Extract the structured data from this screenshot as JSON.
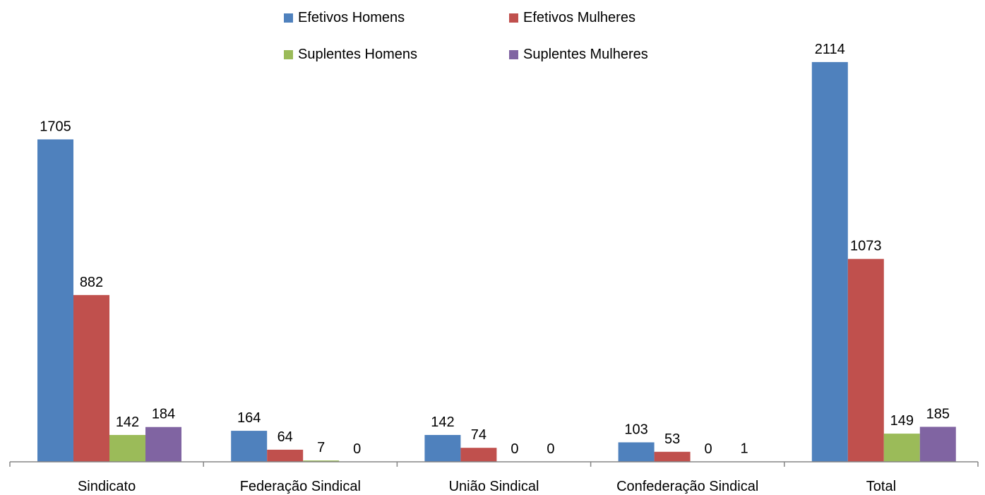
{
  "chart_data": {
    "type": "bar",
    "title": "",
    "xlabel": "",
    "ylabel": "",
    "ylim": [
      0,
      2300
    ],
    "grid": false,
    "legend_position": "top-center",
    "categories": [
      "Sindicato",
      "Federação Sindical",
      "União Sindical",
      "Confederação Sindical",
      "Total"
    ],
    "series": [
      {
        "name": "Efetivos Homens",
        "color": "#4f81bd",
        "values": [
          1705,
          164,
          142,
          103,
          2114
        ]
      },
      {
        "name": "Efetivos Mulheres",
        "color": "#c0504d",
        "values": [
          882,
          64,
          74,
          53,
          1073
        ]
      },
      {
        "name": "Suplentes Homens",
        "color": "#9bbb59",
        "values": [
          142,
          7,
          0,
          0,
          149
        ]
      },
      {
        "name": "Suplentes Mulheres",
        "color": "#8064a2",
        "values": [
          184,
          0,
          0,
          1,
          185
        ]
      }
    ]
  }
}
